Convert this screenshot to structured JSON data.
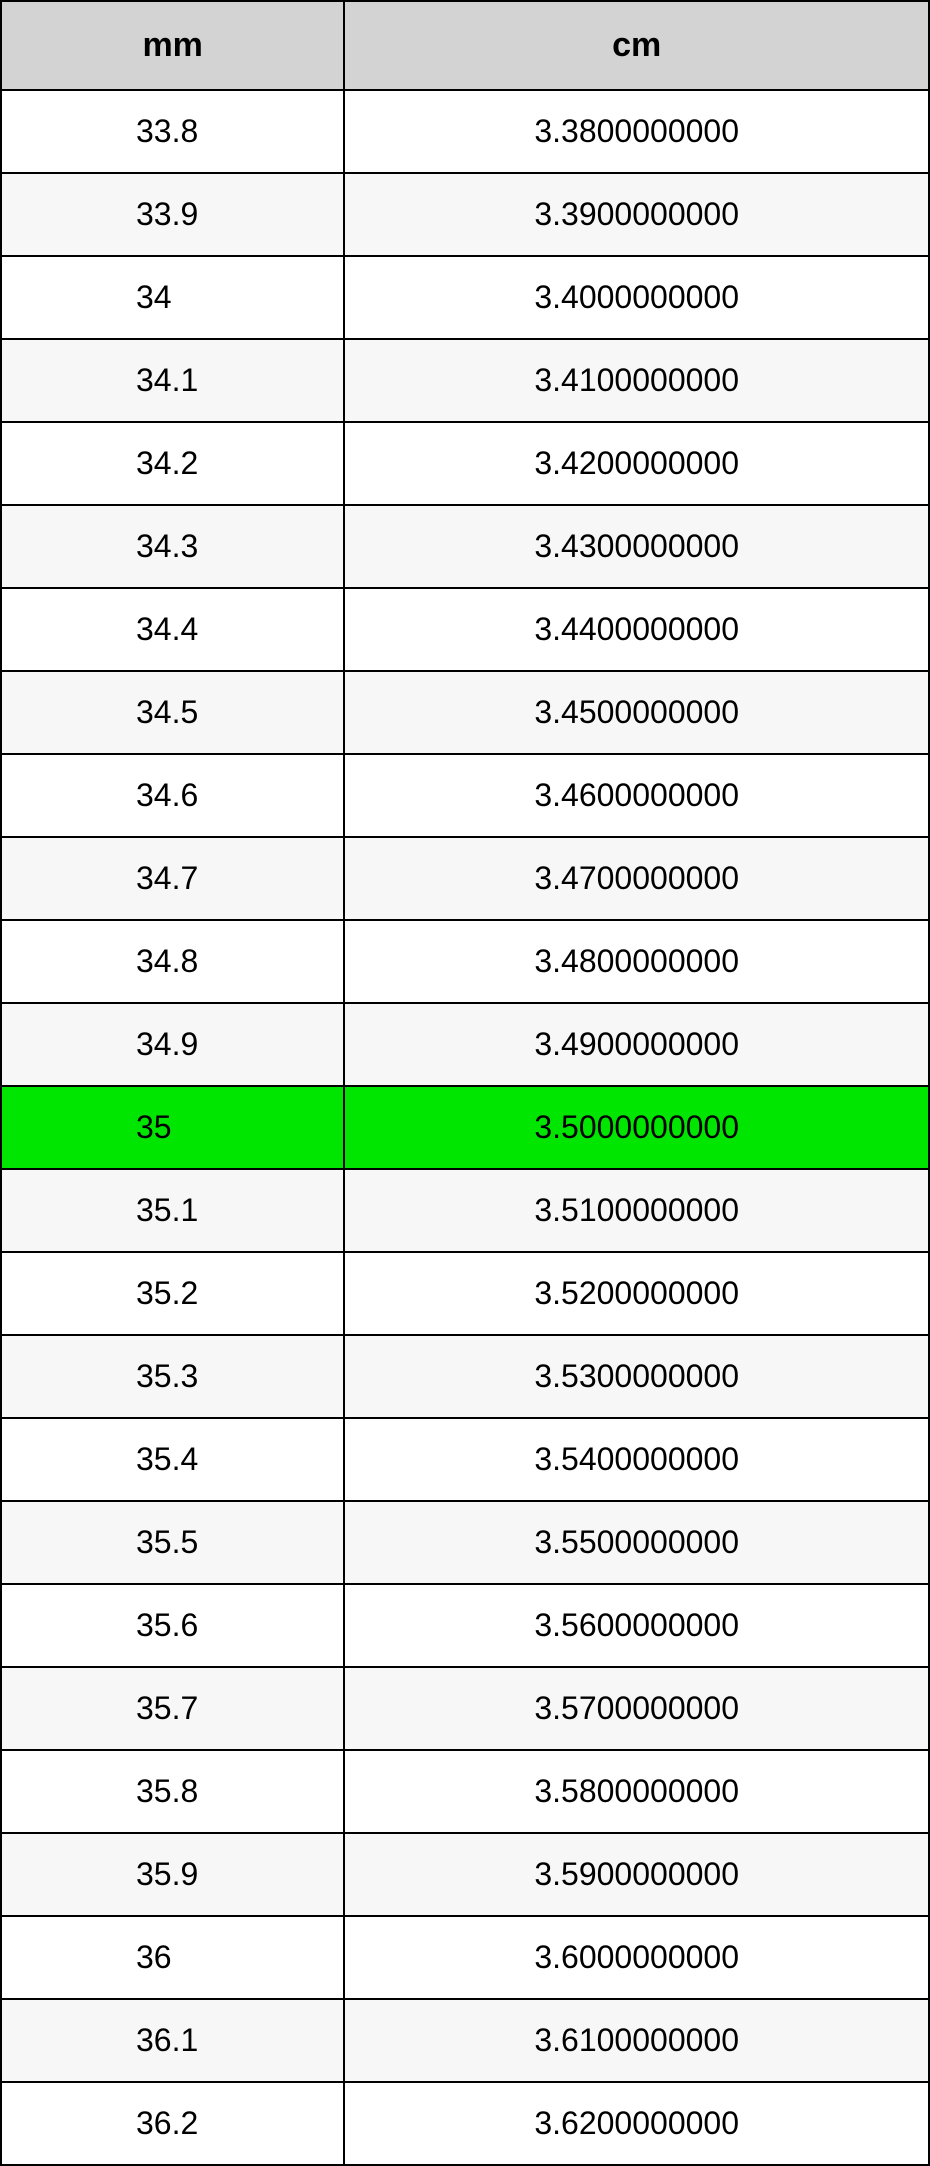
{
  "table": {
    "columns": [
      "mm",
      "cm"
    ],
    "header_bg": "#d3d3d3",
    "border_color": "#000000",
    "alt_row_bg": "#f7f7f7",
    "normal_row_bg": "#ffffff",
    "highlight_bg": "#00e600",
    "header_fontsize": 34,
    "cell_fontsize": 32,
    "col_widths_pct": [
      37,
      63
    ],
    "highlight_index": 12,
    "rows": [
      {
        "mm": "33.8",
        "cm": "3.3800000000",
        "alt": false
      },
      {
        "mm": "33.9",
        "cm": "3.3900000000",
        "alt": true
      },
      {
        "mm": "34",
        "cm": "3.4000000000",
        "alt": false
      },
      {
        "mm": "34.1",
        "cm": "3.4100000000",
        "alt": true
      },
      {
        "mm": "34.2",
        "cm": "3.4200000000",
        "alt": false
      },
      {
        "mm": "34.3",
        "cm": "3.4300000000",
        "alt": true
      },
      {
        "mm": "34.4",
        "cm": "3.4400000000",
        "alt": false
      },
      {
        "mm": "34.5",
        "cm": "3.4500000000",
        "alt": true
      },
      {
        "mm": "34.6",
        "cm": "3.4600000000",
        "alt": false
      },
      {
        "mm": "34.7",
        "cm": "3.4700000000",
        "alt": true
      },
      {
        "mm": "34.8",
        "cm": "3.4800000000",
        "alt": false
      },
      {
        "mm": "34.9",
        "cm": "3.4900000000",
        "alt": true
      },
      {
        "mm": "35",
        "cm": "3.5000000000",
        "alt": false
      },
      {
        "mm": "35.1",
        "cm": "3.5100000000",
        "alt": true
      },
      {
        "mm": "35.2",
        "cm": "3.5200000000",
        "alt": false
      },
      {
        "mm": "35.3",
        "cm": "3.5300000000",
        "alt": true
      },
      {
        "mm": "35.4",
        "cm": "3.5400000000",
        "alt": false
      },
      {
        "mm": "35.5",
        "cm": "3.5500000000",
        "alt": true
      },
      {
        "mm": "35.6",
        "cm": "3.5600000000",
        "alt": false
      },
      {
        "mm": "35.7",
        "cm": "3.5700000000",
        "alt": true
      },
      {
        "mm": "35.8",
        "cm": "3.5800000000",
        "alt": false
      },
      {
        "mm": "35.9",
        "cm": "3.5900000000",
        "alt": true
      },
      {
        "mm": "36",
        "cm": "3.6000000000",
        "alt": false
      },
      {
        "mm": "36.1",
        "cm": "3.6100000000",
        "alt": true
      },
      {
        "mm": "36.2",
        "cm": "3.6200000000",
        "alt": false
      }
    ]
  }
}
